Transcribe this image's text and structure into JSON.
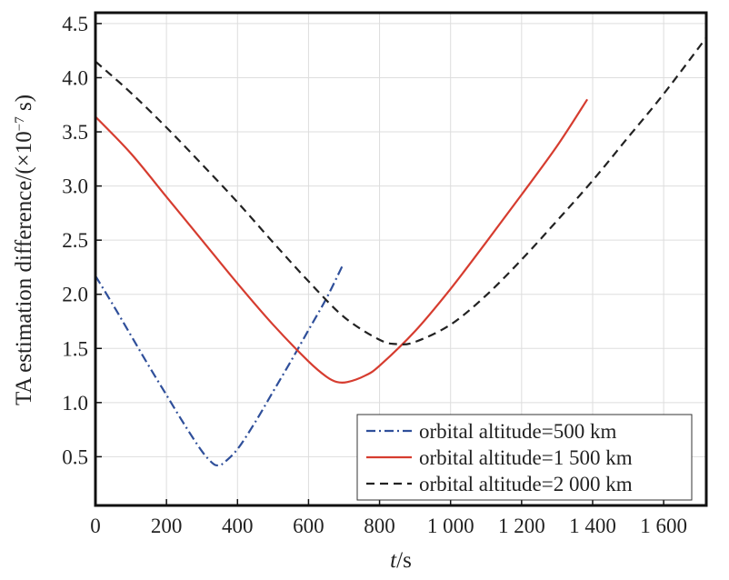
{
  "chart_data": {
    "type": "line",
    "xlabel_italic": "t",
    "xlabel_rest": "/s",
    "ylabel_main": "TA estimation difference/(×10",
    "ylabel_exp": "−7",
    "ylabel_tail": " s)",
    "xlim": [
      0,
      1720
    ],
    "ylim": [
      0.05,
      4.6
    ],
    "x_ticks": [
      0,
      200,
      400,
      600,
      800,
      1000,
      1200,
      1400,
      1600
    ],
    "x_tick_labels": [
      "0",
      "200",
      "400",
      "600",
      "800",
      "1 000",
      "1 200",
      "1 400",
      "1 600"
    ],
    "y_ticks": [
      0.5,
      1.0,
      1.5,
      2.0,
      2.5,
      3.0,
      3.5,
      4.0,
      4.5
    ],
    "y_tick_labels": [
      "0.5",
      "1.0",
      "1.5",
      "2.0",
      "2.5",
      "3.0",
      "3.5",
      "4.0",
      "4.5"
    ],
    "grid": true,
    "legend_position": "bottom-right",
    "series": [
      {
        "name": "orbital altitude=500 km",
        "color": "#2f4f9a",
        "dash": "dashdot",
        "x": [
          0,
          50,
          100,
          150,
          200,
          250,
          300,
          330,
          345,
          360,
          400,
          450,
          500,
          550,
          600,
          650,
          695
        ],
        "y": [
          2.17,
          1.9,
          1.62,
          1.34,
          1.07,
          0.8,
          0.55,
          0.44,
          0.42,
          0.44,
          0.57,
          0.82,
          1.1,
          1.38,
          1.67,
          1.96,
          2.26
        ]
      },
      {
        "name": "orbital altitude=1 500 km",
        "color": "#d63c2f",
        "dash": "solid",
        "x": [
          0,
          100,
          200,
          300,
          400,
          500,
          600,
          650,
          680,
          710,
          760,
          800,
          900,
          1000,
          1100,
          1200,
          1300,
          1385
        ],
        "y": [
          3.64,
          3.3,
          2.9,
          2.5,
          2.1,
          1.72,
          1.38,
          1.24,
          1.19,
          1.19,
          1.25,
          1.34,
          1.66,
          2.05,
          2.48,
          2.92,
          3.37,
          3.8
        ]
      },
      {
        "name": "orbital altitude=2 000 km",
        "color": "#222222",
        "dash": "dashed",
        "x": [
          0,
          100,
          200,
          300,
          400,
          500,
          600,
          700,
          800,
          850,
          900,
          1000,
          1100,
          1200,
          1300,
          1400,
          1500,
          1600,
          1720
        ],
        "y": [
          4.15,
          3.86,
          3.54,
          3.2,
          2.85,
          2.48,
          2.12,
          1.79,
          1.58,
          1.54,
          1.56,
          1.72,
          1.99,
          2.32,
          2.68,
          3.05,
          3.45,
          3.85,
          4.37
        ]
      }
    ]
  }
}
